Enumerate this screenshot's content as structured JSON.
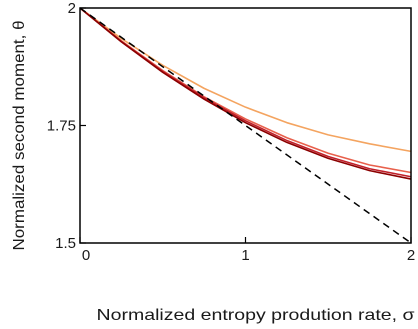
{
  "chart_data": {
    "type": "line",
    "title": "",
    "xlabel": "Normalized entropy prodution rate, σ",
    "ylabel": "Normalized second moment, θ",
    "xlim": [
      0,
      2
    ],
    "ylim": [
      1.5,
      2
    ],
    "x_ticks": [
      0,
      1,
      2
    ],
    "x_tick_labels": [
      "0",
      "1",
      "2"
    ],
    "y_ticks": [
      1.5,
      1.75,
      2
    ],
    "y_tick_labels": [
      "1.5",
      "1.75",
      "2"
    ],
    "grid": false,
    "legend": "none",
    "series": [
      {
        "color": "#f4a460",
        "dashed": false,
        "x": [
          0,
          0.25,
          0.5,
          0.75,
          1.0,
          1.25,
          1.5,
          1.75,
          2.0
        ],
        "y": [
          2.0,
          1.935,
          1.878,
          1.829,
          1.789,
          1.756,
          1.73,
          1.711,
          1.695
        ]
      },
      {
        "color": "#e8604c",
        "dashed": false,
        "x": [
          0,
          0.25,
          0.5,
          0.75,
          1.0,
          1.25,
          1.5,
          1.75,
          2.0
        ],
        "y": [
          2.0,
          1.93,
          1.867,
          1.811,
          1.764,
          1.724,
          1.691,
          1.666,
          1.65
        ]
      },
      {
        "color": "#c0202a",
        "dashed": false,
        "x": [
          0,
          0.25,
          0.5,
          0.75,
          1.0,
          1.25,
          1.5,
          1.75,
          2.0
        ],
        "y": [
          2.0,
          1.929,
          1.865,
          1.809,
          1.76,
          1.718,
          1.684,
          1.658,
          1.641
        ]
      },
      {
        "color": "#8b0000",
        "dashed": false,
        "x": [
          0,
          0.25,
          0.5,
          0.75,
          1.0,
          1.25,
          1.5,
          1.75,
          2.0
        ],
        "y": [
          2.0,
          1.928,
          1.863,
          1.806,
          1.756,
          1.714,
          1.68,
          1.654,
          1.636
        ]
      },
      {
        "color": "#000000",
        "dashed": true,
        "x": [
          0,
          2
        ],
        "y": [
          2.0,
          1.5
        ]
      }
    ]
  }
}
